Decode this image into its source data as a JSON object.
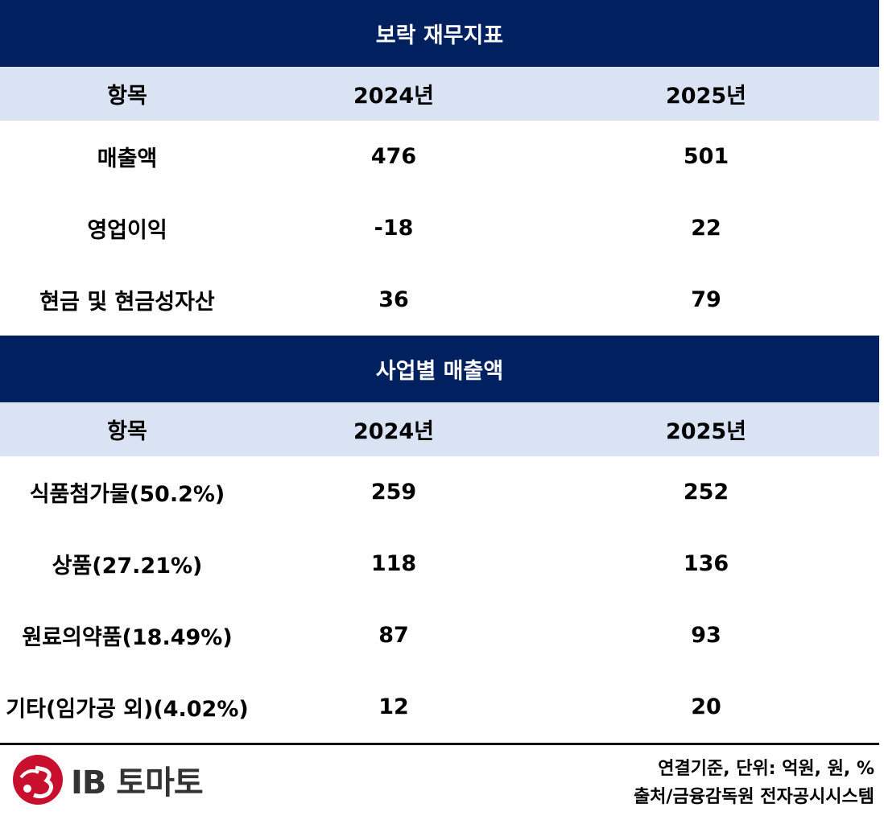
{
  "section1": {
    "title": "보락 재무지표",
    "header": {
      "item": "항목",
      "y2024": "2024년",
      "y2025": "2025년"
    },
    "rows": [
      {
        "item": "매출액",
        "y2024": "476",
        "y2025": "501"
      },
      {
        "item": "영업이익",
        "y2024": "-18",
        "y2025": "22"
      },
      {
        "item": "현금 및 현금성자산",
        "y2024": "36",
        "y2025": "79"
      }
    ]
  },
  "section2": {
    "title": "사업별 매출액",
    "header": {
      "item": "항목",
      "y2024": "2024년",
      "y2025": "2025년"
    },
    "rows": [
      {
        "item": "식품첨가물(50.2%)",
        "y2024": "259",
        "y2025": "252"
      },
      {
        "item": "상품(27.21%)",
        "y2024": "118",
        "y2025": "136"
      },
      {
        "item": "원료의약품(18.49%)",
        "y2024": "87",
        "y2025": "93"
      },
      {
        "item": "기타(임가공 외)(4.02%)",
        "y2024": "12",
        "y2025": "20"
      }
    ]
  },
  "footer": {
    "logo_text": "IB 토마토",
    "note_unit": "연결기준, 단위: 억원, 원, %",
    "note_source": "출처/금융감독원 전자공시시스템"
  },
  "colors": {
    "band": "#002060",
    "header": "#dae3f3",
    "logo_red": "#c8102e"
  }
}
